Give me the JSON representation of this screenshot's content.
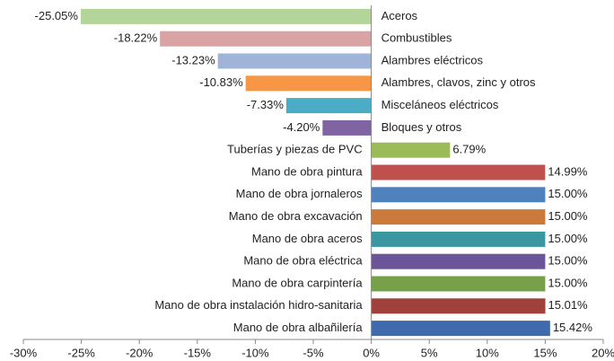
{
  "chart_data": {
    "type": "barh",
    "categories": [
      "Aceros",
      "Combustibles",
      "Alambres eléctricos",
      "Alambres, clavos, zinc y otros",
      "Misceláneos eléctricos",
      "Bloques y otros",
      "Tuberías y piezas de PVC",
      "Mano de obra pintura",
      "Mano de obra jornaleros",
      "Mano de obra excavación",
      "Mano de obra aceros",
      "Mano de obra eléctrica",
      "Mano de obra carpintería",
      "Mano de obra instalación hidro-sanitaria",
      "Mano de obra albañilería"
    ],
    "values": [
      -25.05,
      -18.22,
      -13.23,
      -10.83,
      -7.33,
      -4.2,
      6.79,
      14.99,
      15.0,
      15.0,
      15.0,
      15.0,
      15.0,
      15.01,
      15.42
    ],
    "value_labels": [
      "-25.05%",
      "-18.22%",
      "-13.23%",
      "-10.83%",
      "-7.33%",
      "-4.20%",
      "6.79%",
      "14.99%",
      "15.00%",
      "15.00%",
      "15.00%",
      "15.00%",
      "15.00%",
      "15.01%",
      "15.42%"
    ],
    "colors": [
      "#b3d59a",
      "#d9a3a3",
      "#9fb4d8",
      "#f79646",
      "#4bacc6",
      "#8064a2",
      "#9bbb59",
      "#c0504d",
      "#4f81bd",
      "#cc7a3c",
      "#3a96a0",
      "#6b5497",
      "#77a04a",
      "#a0413c",
      "#3f6aad"
    ],
    "xlim": [
      -30,
      20
    ],
    "xticks": [
      {
        "value": -30,
        "label": "-30%"
      },
      {
        "value": -25,
        "label": "-25%"
      },
      {
        "value": -20,
        "label": "-20%"
      },
      {
        "value": -15,
        "label": "-15%"
      },
      {
        "value": -10,
        "label": "-10%"
      },
      {
        "value": -5,
        "label": "-5%"
      },
      {
        "value": 0,
        "label": "0%"
      },
      {
        "value": 5,
        "label": "5%"
      },
      {
        "value": 10,
        "label": "10%"
      },
      {
        "value": 15,
        "label": "15%"
      },
      {
        "value": 20,
        "label": "20%"
      }
    ],
    "grid": false
  }
}
